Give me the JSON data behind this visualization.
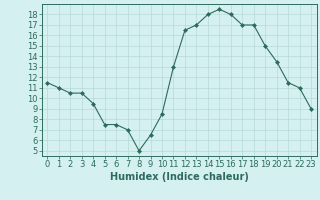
{
  "x": [
    0,
    1,
    2,
    3,
    4,
    5,
    6,
    7,
    8,
    9,
    10,
    11,
    12,
    13,
    14,
    15,
    16,
    17,
    18,
    19,
    20,
    21,
    22,
    23
  ],
  "y": [
    11.5,
    11.0,
    10.5,
    10.5,
    9.5,
    7.5,
    7.5,
    7.0,
    5.0,
    6.5,
    8.5,
    13.0,
    16.5,
    17.0,
    18.0,
    18.5,
    18.0,
    17.0,
    17.0,
    15.0,
    13.5,
    11.5,
    11.0,
    9.0
  ],
  "line_color": "#2e6b5e",
  "marker": "D",
  "marker_size": 2,
  "bg_color": "#d4f0f0",
  "grid_color": "#b8d8d8",
  "xlabel": "Humidex (Indice chaleur)",
  "ylabel_ticks": [
    5,
    6,
    7,
    8,
    9,
    10,
    11,
    12,
    13,
    14,
    15,
    16,
    17,
    18
  ],
  "xlim": [
    -0.5,
    23.5
  ],
  "ylim": [
    4.5,
    19.0
  ],
  "xlabel_fontsize": 7,
  "tick_fontsize": 6,
  "linewidth": 0.8
}
